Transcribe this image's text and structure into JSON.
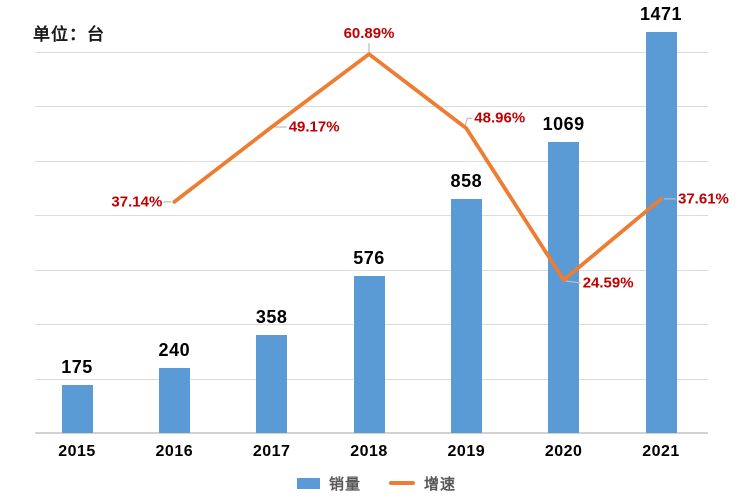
{
  "chart": {
    "unit_label": "单位：台"
  },
  "chart_data": {
    "type": "bar",
    "subtype": "bar-line-combo",
    "categories": [
      "2015",
      "2016",
      "2017",
      "2018",
      "2019",
      "2020",
      "2021"
    ],
    "series": [
      {
        "name": "销量",
        "type": "bar",
        "axis": "primary",
        "color": "#5B9BD5",
        "values": [
          175,
          240,
          358,
          576,
          858,
          1069,
          1471
        ],
        "value_labels": [
          "175",
          "240",
          "358",
          "576",
          "858",
          "1069",
          "1471"
        ]
      },
      {
        "name": "增速",
        "type": "line",
        "axis": "secondary",
        "color": "#ED7D31",
        "unit": "%",
        "values": [
          null,
          37.14,
          49.17,
          60.89,
          48.96,
          24.59,
          37.61
        ],
        "value_labels": [
          "",
          "37.14%",
          "49.17%",
          "60.89%",
          "48.96%",
          "24.59%",
          "37.61%"
        ],
        "label_placements": [
          null,
          "left",
          "right",
          "above",
          "right-up",
          "right-down",
          "right"
        ]
      }
    ],
    "title": "",
    "xlabel": "",
    "ylabel": "单位：台",
    "ylim_primary": [
      0,
      1400
    ],
    "ylim_secondary_percent": [
      0,
      61.3
    ],
    "gridline_step": 200,
    "grid": true,
    "legend_position": "bottom",
    "colors": {
      "bar": "#5B9BD5",
      "line": "#ED7D31",
      "bar_label": "#000000",
      "line_label": "#C00000",
      "gridline": "#DCDCDC",
      "axis_line": "#D2D2D2",
      "leader_line": "#BBBBBB",
      "axis_text": "#000000",
      "legend_text": "#595959"
    }
  }
}
